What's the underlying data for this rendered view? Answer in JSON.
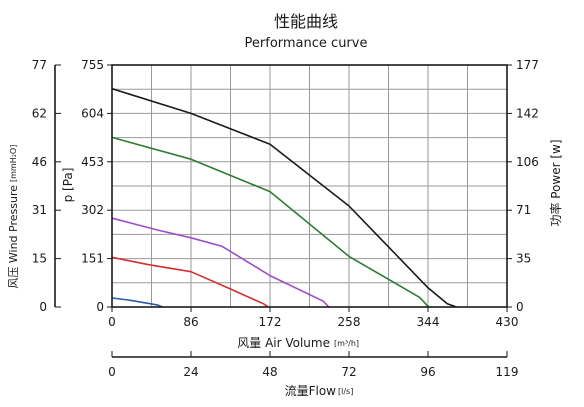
{
  "chart_data": {
    "type": "line",
    "title": "性能曲线",
    "subtitle": "Performance curve",
    "xlabel": {
      "main": "风量 Air Volume",
      "unit": "[m³/h]"
    },
    "x2label": {
      "main": "流量Flow",
      "unit": "[l/s]"
    },
    "ylabel_left_outer": {
      "main": "风压 Wind Pressure",
      "unit": "[mmH₂O]"
    },
    "ylabel_left_inner": "p [Pa]",
    "ylabel_right": "功率 Power [w]",
    "xlim": [
      0,
      430
    ],
    "ylim": [
      0,
      755
    ],
    "x_ticks": [
      "0",
      "86",
      "172",
      "258",
      "344",
      "430"
    ],
    "x2_ticks": [
      "0",
      "24",
      "48",
      "72",
      "96",
      "119"
    ],
    "y_ticks_pa": [
      "0",
      "151",
      "302",
      "453",
      "604",
      "755"
    ],
    "y_ticks_mmh2o": [
      "0",
      "15",
      "31",
      "46",
      "62",
      "77"
    ],
    "y_ticks_power": [
      "0",
      "35",
      "71",
      "106",
      "142",
      "177"
    ],
    "grid": true,
    "series": [
      {
        "color": "#1a1a1a",
        "x": [
          0,
          86,
          172,
          258,
          344,
          365,
          375
        ],
        "y": [
          681,
          604,
          508,
          315,
          60,
          10,
          0
        ]
      },
      {
        "color": "#2e7d32",
        "x": [
          0,
          86,
          172,
          258,
          335,
          343,
          345
        ],
        "y": [
          529,
          461,
          360,
          158,
          30,
          5,
          0
        ]
      },
      {
        "color": "#9c4dcc",
        "x": [
          0,
          50,
          86,
          120,
          172,
          230,
          236
        ],
        "y": [
          277,
          240,
          216,
          189,
          98,
          18,
          0
        ]
      },
      {
        "color": "#d32f2f",
        "x": [
          0,
          40,
          86,
          130,
          165,
          170
        ],
        "y": [
          155,
          132,
          110,
          55,
          10,
          0
        ]
      },
      {
        "color": "#2a5da8",
        "x": [
          0,
          20,
          50,
          55
        ],
        "y": [
          28,
          21,
          6,
          0
        ]
      }
    ]
  }
}
